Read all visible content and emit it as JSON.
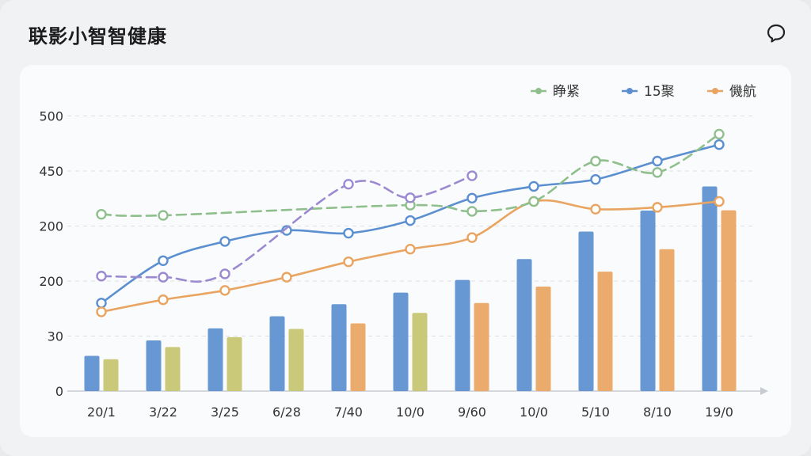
{
  "header": {
    "title": "联影小智智健康",
    "chat_icon": "chat-bubble-icon"
  },
  "colors": {
    "green": "#8fbf8c",
    "blue": "#5b8fcf",
    "orange": "#e8a460",
    "purple": "#9b8ad0",
    "olive": "#c6c46e",
    "grid": "#dcdfe4",
    "axis": "#c8ccd2",
    "text": "#333333"
  },
  "chart_data": {
    "type": "bar+line",
    "categories": [
      "20/1",
      "3/22",
      "3/25",
      "6/28",
      "7/40",
      "10/0",
      "9/60",
      "10/0",
      "5/10",
      "8/10",
      "19/0"
    ],
    "y_tick_labels": [
      "0",
      "30",
      "200",
      "200",
      "450",
      "500"
    ],
    "ylim": [
      0,
      500
    ],
    "grid": true,
    "legend_position": "top-right",
    "legend": [
      {
        "label": "睁紧",
        "color": "green"
      },
      {
        "label": "15聚",
        "color": "blue"
      },
      {
        "label": "僟航",
        "color": "orange"
      }
    ],
    "bars": [
      {
        "name": "blue",
        "color": "blue",
        "values": [
          32,
          46,
          64,
          86,
          108,
          129,
          152,
          190,
          240,
          292,
          358
        ]
      },
      {
        "name": "second",
        "colors": [
          "olive",
          "olive",
          "olive",
          "olive",
          "orange",
          "olive",
          "orange",
          "orange",
          "orange",
          "orange",
          "orange"
        ],
        "values": [
          29,
          40,
          49,
          63,
          73,
          92,
          110,
          140,
          167,
          208,
          293
        ]
      }
    ],
    "lines": [
      {
        "name": "blue",
        "color": "blue",
        "dashed": false,
        "values": [
          110,
          187,
          222,
          242,
          237,
          265,
          326,
          358,
          377,
          418,
          448
        ]
      },
      {
        "name": "orange",
        "color": "orange",
        "dashed": false,
        "values": [
          94,
          116,
          133,
          157,
          185,
          208,
          229,
          317,
          296,
          301,
          317
        ]
      },
      {
        "name": "green",
        "color": "green",
        "dashed": true,
        "values": [
          282,
          279,
          null,
          null,
          null,
          307,
          290,
          317,
          418,
          396,
          467
        ]
      },
      {
        "name": "purple",
        "color": "purple",
        "dashed": true,
        "values": [
          159,
          157,
          163,
          null,
          364,
          327,
          387,
          null,
          null,
          null,
          null
        ]
      }
    ]
  }
}
